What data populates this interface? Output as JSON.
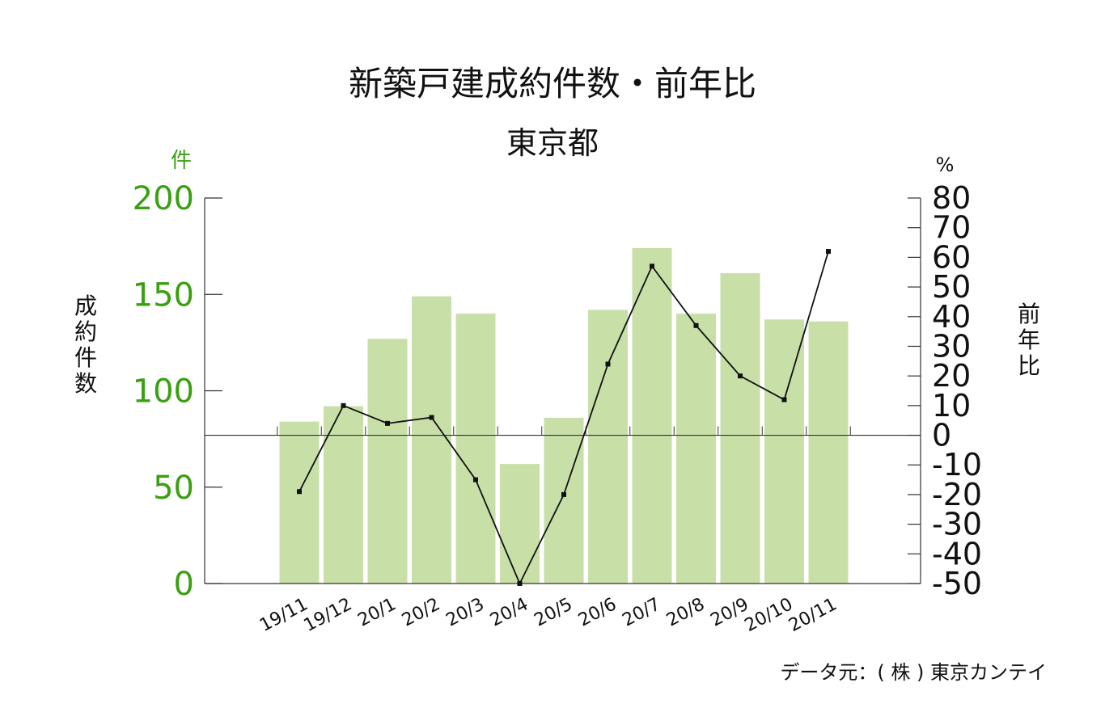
{
  "title": "新築戸建成約件数・前年比",
  "subtitle": "東京都",
  "source": "データ元：( 株 ) 東京カンテイ",
  "colors": {
    "bar": "#c8dfa8",
    "line": "#111111",
    "left_axis_text": "#3aa012"
  },
  "chart_data": {
    "type": "bar+line",
    "categories": [
      "19/11",
      "19/12",
      "20/1",
      "20/2",
      "20/3",
      "20/4",
      "20/5",
      "20/6",
      "20/7",
      "20/8",
      "20/9",
      "20/10",
      "20/11"
    ],
    "series": [
      {
        "axis": "left",
        "type": "bar",
        "values": [
          84,
          92,
          127,
          149,
          140,
          62,
          86,
          142,
          174,
          140,
          161,
          137,
          136
        ]
      },
      {
        "axis": "right",
        "type": "line",
        "values": [
          -19,
          10,
          4,
          6,
          -15,
          -50,
          -20,
          24,
          57,
          37,
          20,
          12,
          62
        ]
      }
    ],
    "left_axis": {
      "unit": "件",
      "label": "成約件数",
      "range": [
        0,
        200
      ],
      "ticks": [
        0,
        50,
        100,
        150,
        200
      ]
    },
    "right_axis": {
      "unit": "%",
      "label": "前年比",
      "range": [
        -50,
        80
      ],
      "ticks": [
        -50,
        -40,
        -30,
        -20,
        -10,
        0,
        10,
        20,
        30,
        40,
        50,
        60,
        70,
        80
      ]
    },
    "grid": false,
    "legend": "none"
  }
}
